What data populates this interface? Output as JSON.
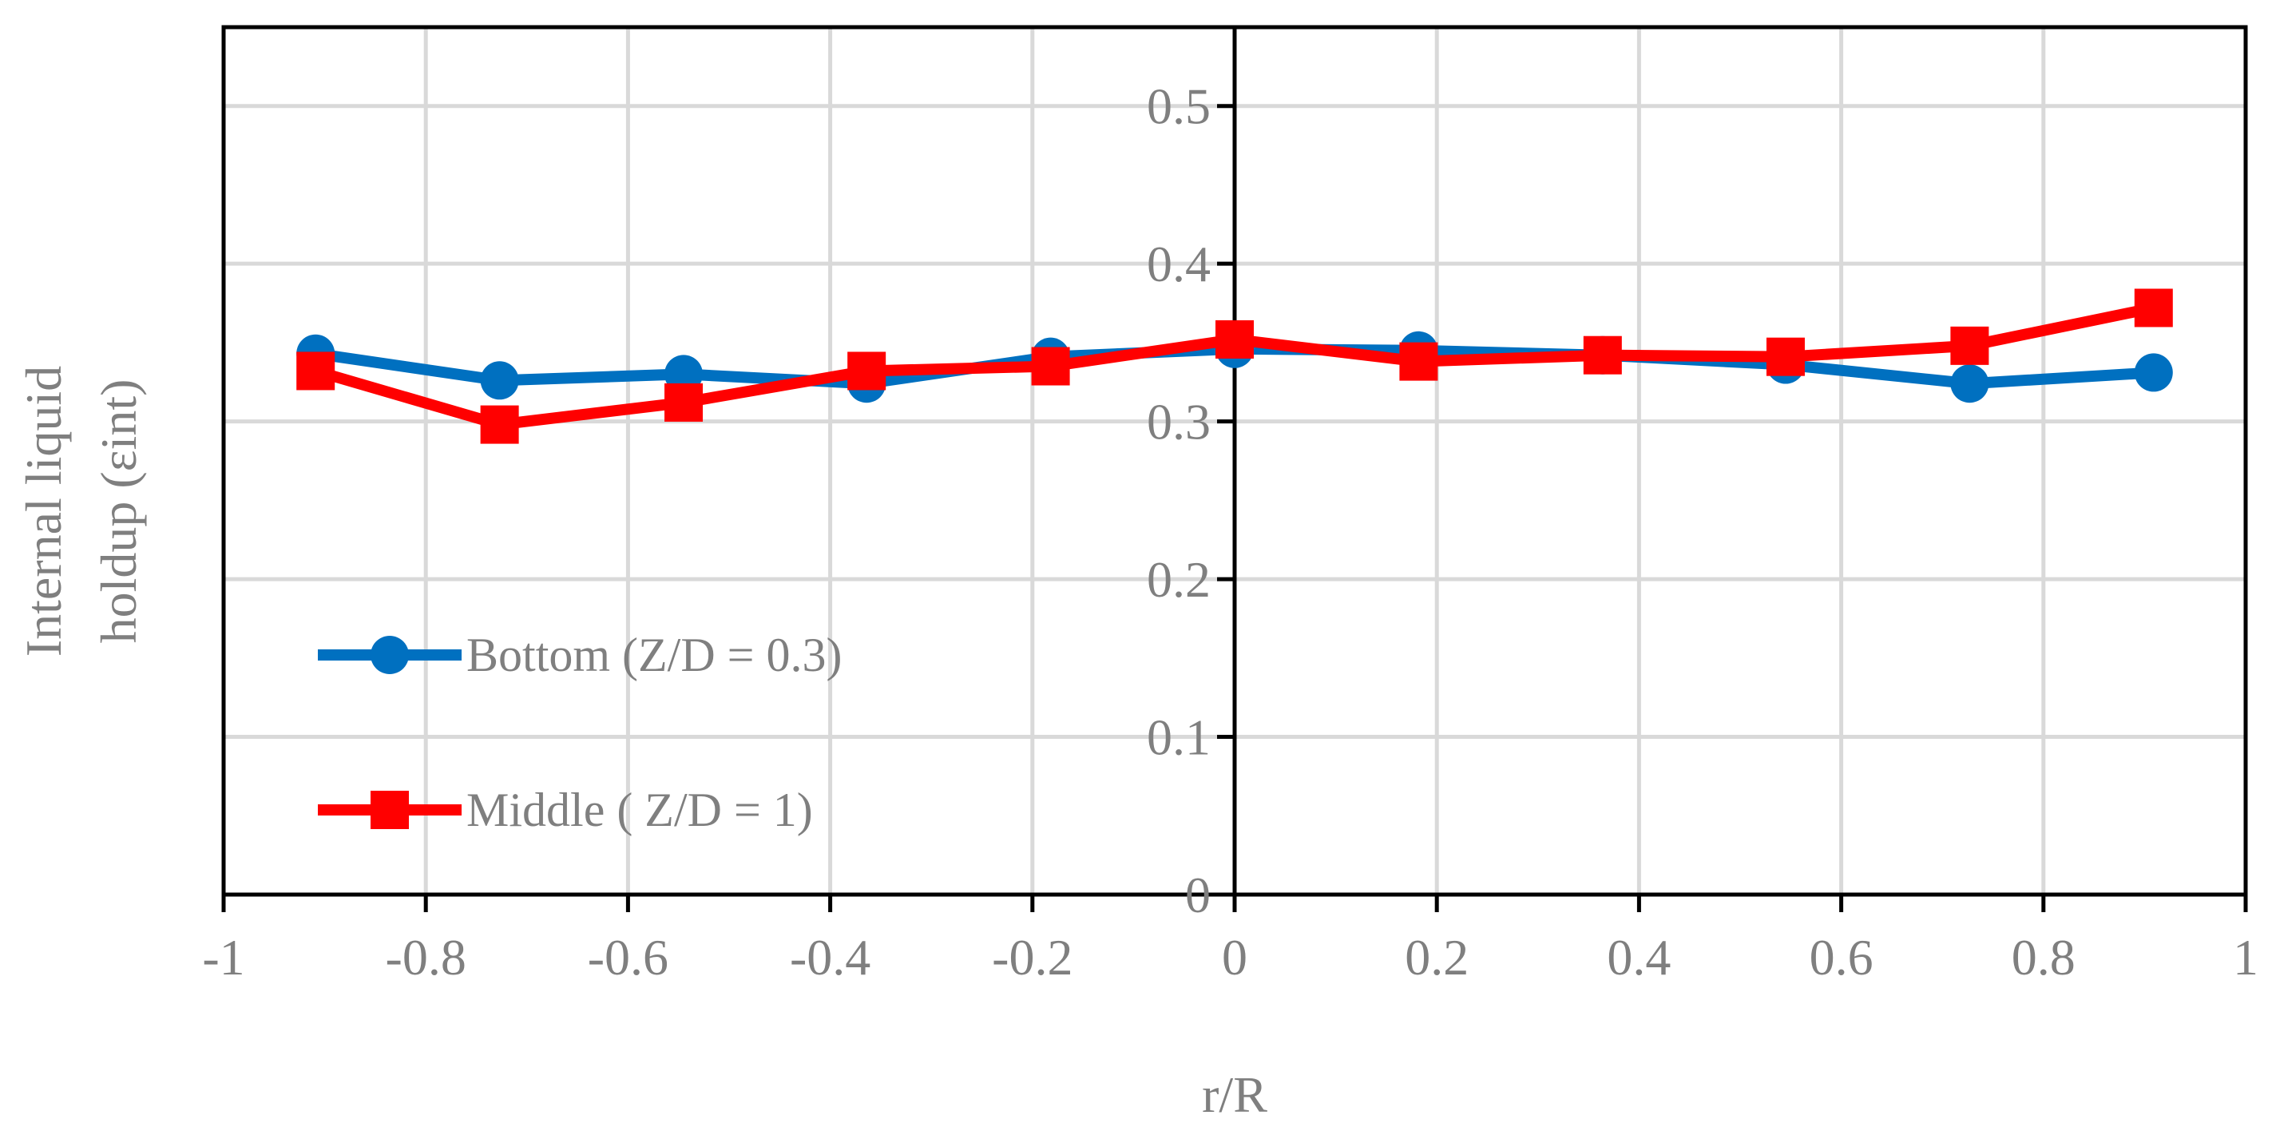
{
  "chart_data": {
    "type": "line",
    "title": "",
    "xlabel": "r/R",
    "ylabel": "Internal liquid holdup (εint)",
    "ylabel_lines": [
      "Internal liquid",
      "holdup (εint)"
    ],
    "xlim": [
      -1,
      1
    ],
    "ylim": [
      0,
      0.55
    ],
    "x_ticks": [
      -1,
      -0.8,
      -0.6,
      -0.4,
      -0.2,
      0,
      0.2,
      0.4,
      0.6,
      0.8,
      1
    ],
    "x_tick_labels": [
      "-1",
      "-0.8",
      "-0.6",
      "-0.4",
      "-0.2",
      "0",
      "0.2",
      "0.4",
      "0.6",
      "0.8",
      "1"
    ],
    "y_ticks": [
      0,
      0.1,
      0.2,
      0.3,
      0.4,
      0.5
    ],
    "y_tick_labels": [
      "0",
      "0.1",
      "0.2",
      "0.3",
      "0.4",
      "0.5"
    ],
    "grid": true,
    "legend_position": "lower-left",
    "series": [
      {
        "name": "Bottom (Z/D = 0.3)",
        "color": "#0070C0",
        "marker": "circle",
        "x": [
          -0.909,
          -0.727,
          -0.545,
          -0.364,
          -0.182,
          0,
          0.182,
          0.364,
          0.545,
          0.727,
          0.909
        ],
        "values": [
          0.343,
          0.326,
          0.33,
          0.324,
          0.341,
          0.346,
          0.345,
          0.342,
          0.336,
          0.324,
          0.331
        ]
      },
      {
        "name": "Middle ( Z/D = 1)",
        "color": "#FF0000",
        "marker": "square",
        "x": [
          -0.909,
          -0.727,
          -0.545,
          -0.364,
          -0.182,
          0,
          0.182,
          0.364,
          0.545,
          0.727,
          0.909
        ],
        "values": [
          0.332,
          0.298,
          0.312,
          0.332,
          0.335,
          0.352,
          0.338,
          0.342,
          0.341,
          0.348,
          0.372
        ]
      }
    ]
  }
}
